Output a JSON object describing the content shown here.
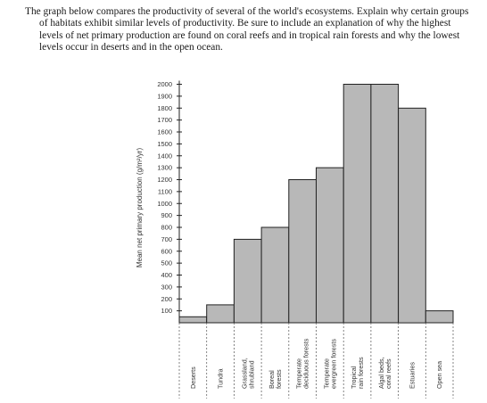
{
  "question": {
    "text": "The graph below compares the productivity of several of the world's ecosystems. Explain why certain groups of habitats exhibit similar levels of productivity. Be sure to include an explanation of why the highest levels of net primary production are found on coral reefs and in tropical rain forests and why the lowest levels occur in deserts and in the open ocean."
  },
  "chart_data": {
    "type": "bar",
    "ylabel": "Mean net primary production (g/m²/yr)",
    "xlabel": "",
    "title": "",
    "ylim": [
      0,
      2000
    ],
    "yticks": [
      100,
      200,
      300,
      400,
      500,
      600,
      700,
      800,
      900,
      1000,
      1100,
      1200,
      1300,
      1400,
      1500,
      1600,
      1700,
      1800,
      1900,
      2000
    ],
    "categories": [
      [
        "Deserts"
      ],
      [
        "Tundra"
      ],
      [
        "Grassland,",
        "shrubland"
      ],
      [
        "Boreal",
        "forests"
      ],
      [
        "Temperate",
        "deciduous forests"
      ],
      [
        "Temperate",
        "evergreen forests"
      ],
      [
        "Tropical",
        "rain forests"
      ],
      [
        "Algal beds,",
        "coral reefs"
      ],
      [
        "Estuaries"
      ],
      [
        "Open sea"
      ]
    ],
    "values": [
      50,
      150,
      700,
      800,
      1200,
      1300,
      2000,
      2000,
      1800,
      100
    ],
    "bar_color": "#b8b8b8",
    "grid": false
  }
}
